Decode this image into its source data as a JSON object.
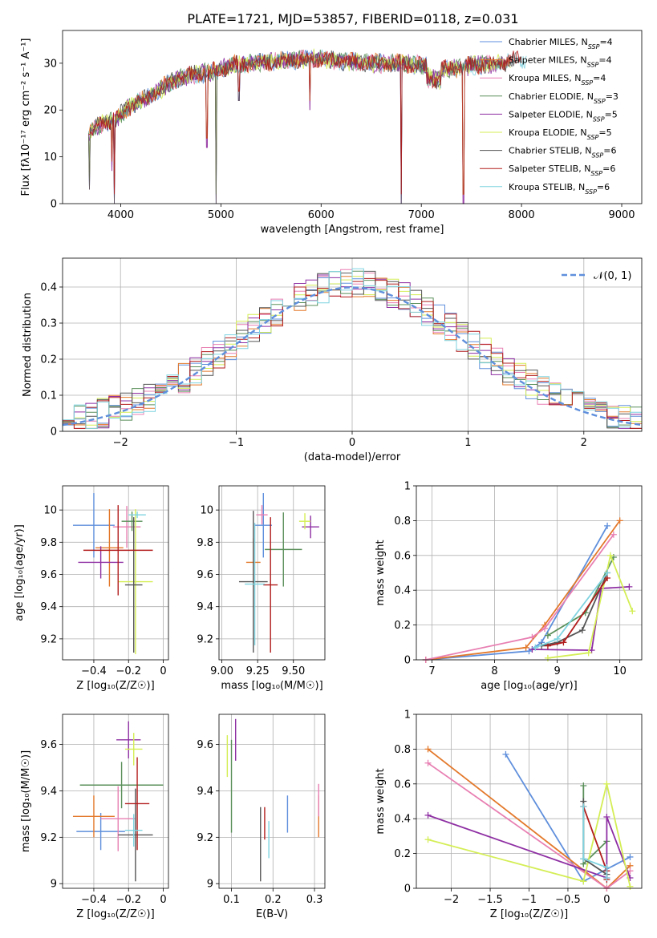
{
  "figure": {
    "title": "PLATE=1721, MJD=53857, FIBERID=0118, z=0.031"
  },
  "colors": {
    "series": [
      "#5f8fdc",
      "#e3782a",
      "#e87fb2",
      "#5a8f5a",
      "#8e2fa3",
      "#d4ee55",
      "#555555",
      "#b21c1c",
      "#7fd3e0"
    ]
  },
  "chart_data": [
    {
      "id": "spectrum",
      "type": "line",
      "xlabel": "wavelength [Angstrom, rest frame]",
      "ylabel": "Flux [fλ10⁻¹⁷ erg cm⁻² s⁻¹ A⁻¹]",
      "xlim": [
        3420,
        9200
      ],
      "ylim": [
        0,
        37
      ],
      "xticks": [
        4000,
        5000,
        6000,
        7000,
        8000,
        9000
      ],
      "yticks": [
        0,
        10,
        20,
        30
      ],
      "legend_position": "top-right",
      "series": [
        {
          "name": "Chabrier MILES, N",
          "sub": "SSP",
          "suffix": "=4"
        },
        {
          "name": "Salpeter MILES, N",
          "sub": "SSP",
          "suffix": "=4"
        },
        {
          "name": "Kroupa MILES, N",
          "sub": "SSP",
          "suffix": "=4"
        },
        {
          "name": "Chabrier ELODIE, N",
          "sub": "SSP",
          "suffix": "=3"
        },
        {
          "name": "Salpeter ELODIE, N",
          "sub": "SSP",
          "suffix": "=5"
        },
        {
          "name": "Kroupa ELODIE, N",
          "sub": "SSP",
          "suffix": "=5"
        },
        {
          "name": "Chabrier STELIB, N",
          "sub": "SSP",
          "suffix": "=6"
        },
        {
          "name": "Salpeter STELIB, N",
          "sub": "SSP",
          "suffix": "=6"
        },
        {
          "name": "Kroupa STELIB, N",
          "sub": "SSP",
          "suffix": "=6"
        }
      ],
      "continuum": [
        [
          3680,
          15
        ],
        [
          3800,
          17
        ],
        [
          3950,
          18
        ],
        [
          4100,
          21
        ],
        [
          4300,
          23
        ],
        [
          4500,
          26
        ],
        [
          4700,
          27.5
        ],
        [
          4900,
          28
        ],
        [
          5100,
          29.5
        ],
        [
          5300,
          30
        ],
        [
          5600,
          30.5
        ],
        [
          5900,
          31
        ],
        [
          6200,
          30.5
        ],
        [
          6500,
          30
        ],
        [
          6800,
          30
        ],
        [
          7000,
          29.5
        ],
        [
          7200,
          28.5
        ],
        [
          7500,
          29.5
        ],
        [
          7800,
          30
        ],
        [
          8000,
          31
        ]
      ],
      "dropouts": [
        [
          3690,
          3
        ],
        [
          3910,
          7
        ],
        [
          3935,
          0
        ],
        [
          4861,
          12
        ],
        [
          4950,
          0
        ],
        [
          5180,
          22
        ],
        [
          5890,
          20
        ],
        [
          6800,
          0
        ],
        [
          7420,
          0
        ]
      ]
    },
    {
      "id": "residuals",
      "type": "histogram",
      "xlabel": "(data-model)/error",
      "ylabel": "Normed distribution",
      "xlim": [
        -2.5,
        2.5
      ],
      "ylim": [
        0,
        0.48
      ],
      "xticks": [
        -2,
        -1,
        0,
        1,
        2
      ],
      "yticks": [
        0.0,
        0.1,
        0.2,
        0.3,
        0.4
      ],
      "legend": "𝒩(0, 1)",
      "legend_position": "top-right",
      "bin_width": 0.1
    },
    {
      "id": "age-vs-z",
      "type": "scatter",
      "xlabel": "Z [log₁₀(Z/Z☉)]",
      "ylabel": "age  [log₁₀(age/yr)]",
      "xlim": [
        -0.58,
        0.03
      ],
      "ylim": [
        9.07,
        10.15
      ],
      "xticks": [
        -0.4,
        -0.2,
        0.0
      ],
      "yticks": [
        9.2,
        9.4,
        9.6,
        9.8,
        10.0
      ],
      "points": [
        {
          "x": -0.4,
          "y": 9.905,
          "xerr": 0.12,
          "yerr": 0.2
        },
        {
          "x": -0.31,
          "y": 9.765,
          "xerr": 0.08,
          "yerr": 0.24
        },
        {
          "x": -0.21,
          "y": 9.895,
          "xerr": 0.08,
          "yerr": 0.13
        },
        {
          "x": -0.18,
          "y": 9.93,
          "xerr": 0.06,
          "yerr": 0.06
        },
        {
          "x": -0.36,
          "y": 9.675,
          "xerr": 0.13,
          "yerr": 0.1
        },
        {
          "x": -0.16,
          "y": 9.555,
          "xerr": 0.1,
          "yerr": 0.45
        },
        {
          "x": -0.17,
          "y": 9.535,
          "xerr": 0.05,
          "yerr": 0.42
        },
        {
          "x": -0.26,
          "y": 9.75,
          "xerr": 0.2,
          "yerr": 0.28
        },
        {
          "x": -0.15,
          "y": 9.97,
          "xerr": 0.05,
          "yerr": 0.02
        }
      ]
    },
    {
      "id": "age-vs-mass",
      "type": "scatter",
      "xlabel": "mass [log₁₀(M/M☉)]",
      "ylabel": "",
      "xlim": [
        8.98,
        9.72
      ],
      "ylim": [
        9.07,
        10.15
      ],
      "xticks": [
        9.0,
        9.25,
        9.5
      ],
      "xticklabels": [
        "9.00",
        "9.25",
        "9.50"
      ],
      "yticks": [
        9.2,
        9.4,
        9.6,
        9.8,
        10.0
      ],
      "points": [
        {
          "x": 9.29,
          "y": 9.905,
          "xerr": 0.06,
          "yerr": 0.2
        },
        {
          "x": 9.22,
          "y": 9.675,
          "xerr": 0.05,
          "yerr": 0.15
        },
        {
          "x": 9.28,
          "y": 9.97,
          "xerr": 0.04,
          "yerr": 0.06
        },
        {
          "x": 9.43,
          "y": 9.755,
          "xerr": 0.13,
          "yerr": 0.23
        },
        {
          "x": 9.62,
          "y": 9.895,
          "xerr": 0.06,
          "yerr": 0.07
        },
        {
          "x": 9.58,
          "y": 9.93,
          "xerr": 0.04,
          "yerr": 0.05
        },
        {
          "x": 9.22,
          "y": 9.555,
          "xerr": 0.1,
          "yerr": 0.44
        },
        {
          "x": 9.34,
          "y": 9.535,
          "xerr": 0.05,
          "yerr": 0.42
        },
        {
          "x": 9.23,
          "y": 9.54,
          "xerr": 0.07,
          "yerr": 0.38
        }
      ]
    },
    {
      "id": "weight-vs-age",
      "type": "line",
      "xlabel": "age  [log₁₀(age/yr)]",
      "ylabel": "mass weight",
      "xlim": [
        6.75,
        10.35
      ],
      "ylim": [
        0,
        1.0
      ],
      "xticks": [
        7,
        8,
        9,
        10
      ],
      "yticks": [
        0.0,
        0.2,
        0.4,
        0.6,
        0.8,
        1.0
      ],
      "series": [
        {
          "points": [
            [
              6.9,
              0.0
            ],
            [
              8.55,
              0.05
            ],
            [
              8.75,
              0.1
            ],
            [
              9.8,
              0.77
            ]
          ]
        },
        {
          "points": [
            [
              6.9,
              0.0
            ],
            [
              8.5,
              0.07
            ],
            [
              8.8,
              0.2
            ],
            [
              10.0,
              0.8
            ]
          ]
        },
        {
          "points": [
            [
              6.9,
              0.0
            ],
            [
              8.6,
              0.13
            ],
            [
              8.8,
              0.18
            ],
            [
              9.9,
              0.72
            ]
          ]
        },
        {
          "points": [
            [
              8.85,
              0.14
            ],
            [
              9.45,
              0.27
            ],
            [
              9.9,
              0.59
            ]
          ]
        },
        {
          "points": [
            [
              8.6,
              0.06
            ],
            [
              9.55,
              0.055
            ],
            [
              9.7,
              0.41
            ],
            [
              10.15,
              0.42
            ]
          ]
        },
        {
          "points": [
            [
              8.85,
              0.01
            ],
            [
              9.5,
              0.04
            ],
            [
              9.85,
              0.6
            ],
            [
              10.2,
              0.28
            ]
          ]
        },
        {
          "points": [
            [
              8.75,
              0.08
            ],
            [
              9.0,
              0.1
            ],
            [
              9.4,
              0.17
            ],
            [
              9.8,
              0.5
            ]
          ]
        },
        {
          "points": [
            [
              8.85,
              0.08
            ],
            [
              9.1,
              0.1
            ],
            [
              9.8,
              0.47
            ]
          ]
        },
        {
          "points": [
            [
              8.65,
              0.07
            ],
            [
              9.0,
              0.12
            ],
            [
              9.8,
              0.5
            ]
          ]
        }
      ]
    },
    {
      "id": "mass-vs-z",
      "type": "scatter",
      "xlabel": "Z [log₁₀(Z/Z☉)]",
      "ylabel": "mass [log₁₀(M/M☉)]",
      "xlim": [
        -0.58,
        0.03
      ],
      "ylim": [
        8.98,
        9.73
      ],
      "xticks": [
        -0.4,
        -0.2,
        0.0
      ],
      "yticks": [
        9.0,
        9.2,
        9.4,
        9.6
      ],
      "points": [
        {
          "x": -0.36,
          "y": 9.225,
          "xerr": 0.14,
          "yerr": 0.08
        },
        {
          "x": -0.4,
          "y": 9.29,
          "xerr": 0.12,
          "yerr": 0.09
        },
        {
          "x": -0.26,
          "y": 9.28,
          "xerr": 0.1,
          "yerr": 0.14
        },
        {
          "x": -0.24,
          "y": 9.425,
          "xerr": 0.24,
          "yerr": 0.1
        },
        {
          "x": -0.2,
          "y": 9.62,
          "xerr": 0.07,
          "yerr": 0.08
        },
        {
          "x": -0.17,
          "y": 9.58,
          "xerr": 0.05,
          "yerr": 0.07
        },
        {
          "x": -0.16,
          "y": 9.21,
          "xerr": 0.1,
          "yerr": 0.2
        },
        {
          "x": -0.15,
          "y": 9.345,
          "xerr": 0.07,
          "yerr": 0.2
        },
        {
          "x": -0.17,
          "y": 9.23,
          "xerr": 0.05,
          "yerr": 0.07
        }
      ]
    },
    {
      "id": "mass-vs-ebv",
      "type": "scatter",
      "xlabel": "E(B-V)",
      "ylabel": "",
      "xlim": [
        0.07,
        0.325
      ],
      "ylim": [
        8.98,
        9.73
      ],
      "xticks": [
        0.1,
        0.2,
        0.3
      ],
      "yticks": [
        9.0,
        9.2,
        9.4,
        9.6
      ],
      "points": [
        {
          "x": 0.235,
          "y": 9.3,
          "xerr": 0,
          "yerr": 0.08
        },
        {
          "x": 0.31,
          "y": 9.29,
          "xerr": 0,
          "yerr": 0.09
        },
        {
          "x": 0.31,
          "y": 9.36,
          "xerr": 0,
          "yerr": 0.07
        },
        {
          "x": 0.1,
          "y": 9.42,
          "xerr": 0,
          "yerr": 0.2
        },
        {
          "x": 0.11,
          "y": 9.62,
          "xerr": 0,
          "yerr": 0.09
        },
        {
          "x": 0.09,
          "y": 9.55,
          "xerr": 0,
          "yerr": 0.09
        },
        {
          "x": 0.17,
          "y": 9.17,
          "xerr": 0,
          "yerr": 0.16
        },
        {
          "x": 0.18,
          "y": 9.26,
          "xerr": 0,
          "yerr": 0.07
        },
        {
          "x": 0.19,
          "y": 9.19,
          "xerr": 0,
          "yerr": 0.08
        }
      ]
    },
    {
      "id": "weight-vs-z",
      "type": "line",
      "xlabel": "Z [log₁₀(Z/Z☉)]",
      "ylabel": "mass weight",
      "xlim": [
        -2.45,
        0.45
      ],
      "ylim": [
        0,
        1.0
      ],
      "xticks": [
        -2.0,
        -1.5,
        -1.0,
        -0.5,
        0.0
      ],
      "yticks": [
        0.0,
        0.2,
        0.4,
        0.6,
        0.8,
        1.0
      ],
      "series": [
        {
          "points": [
            [
              -1.3,
              0.77
            ],
            [
              -0.3,
              0.04
            ],
            [
              0.3,
              0.18
            ]
          ]
        },
        {
          "points": [
            [
              -2.3,
              0.8
            ],
            [
              0.0,
              0.0
            ],
            [
              0.3,
              0.13
            ]
          ]
        },
        {
          "points": [
            [
              -2.3,
              0.72
            ],
            [
              0.0,
              0.0
            ],
            [
              0.3,
              0.1
            ]
          ]
        },
        {
          "points": [
            [
              -0.3,
              0.59
            ],
            [
              -0.3,
              0.14
            ],
            [
              0.0,
              0.27
            ]
          ]
        },
        {
          "points": [
            [
              -2.3,
              0.42
            ],
            [
              0.0,
              0.06
            ],
            [
              0.0,
              0.41
            ],
            [
              0.3,
              0.06
            ]
          ]
        },
        {
          "points": [
            [
              -2.3,
              0.28
            ],
            [
              -0.3,
              0.04
            ],
            [
              0.0,
              0.6
            ],
            [
              0.3,
              0.01
            ]
          ]
        },
        {
          "points": [
            [
              -0.3,
              0.5
            ],
            [
              -0.3,
              0.17
            ],
            [
              0.0,
              0.08
            ]
          ]
        },
        {
          "points": [
            [
              -0.3,
              0.47
            ],
            [
              0.0,
              0.1
            ],
            [
              0.0,
              0.05
            ]
          ]
        },
        {
          "points": [
            [
              -0.3,
              0.47
            ],
            [
              -0.3,
              0.17
            ],
            [
              0.0,
              0.12
            ],
            [
              0.0,
              0.06
            ]
          ]
        }
      ]
    }
  ]
}
